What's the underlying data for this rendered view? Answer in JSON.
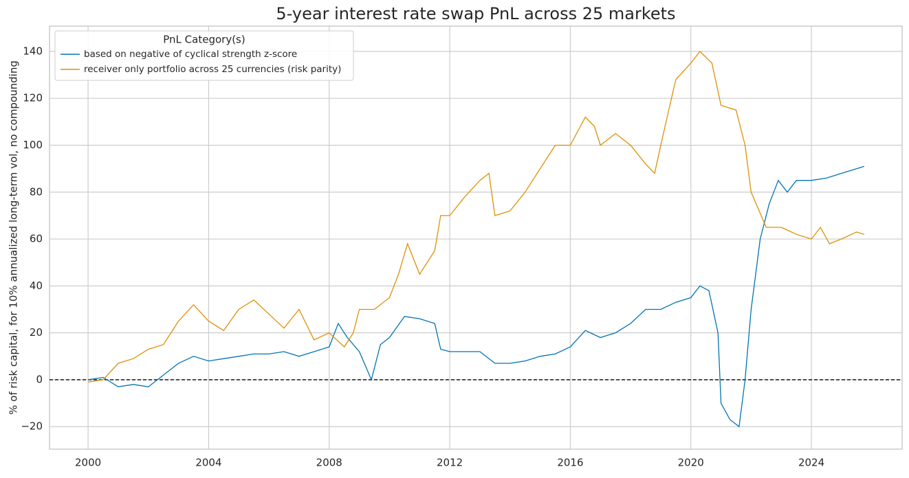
{
  "chart_data": {
    "type": "line",
    "title": "5-year interest rate swap PnL across 25 markets",
    "ylabel": "% of risk capital, for 10% annualized long-term vol, no compounding",
    "legend_title": "PnL Category(s)",
    "legend": "upper left",
    "grid": true,
    "hline": 0,
    "xlim": [
      1998.72,
      2027.01
    ],
    "xticks": [
      2000,
      2004,
      2008,
      2012,
      2016,
      2020,
      2024
    ],
    "ylim": [
      -29.6,
      150.8
    ],
    "yticks": [
      {
        "value": -20,
        "label": "−20"
      },
      0,
      20,
      40,
      60,
      80,
      100,
      120,
      140
    ],
    "series": [
      {
        "name": "based on negative of cyclical strength z-score",
        "color": "#0173b2",
        "x": [
          2000,
          2000.5,
          2001,
          2001.5,
          2002,
          2002.5,
          2003,
          2003.5,
          2004,
          2004.5,
          2005,
          2005.5,
          2006,
          2006.5,
          2007,
          2007.5,
          2008,
          2008.3,
          2008.6,
          2009,
          2009.4,
          2009.7,
          2010,
          2010.5,
          2011,
          2011.5,
          2011.7,
          2012,
          2012.5,
          2013,
          2013.5,
          2014,
          2014.5,
          2015,
          2015.5,
          2016,
          2016.5,
          2017,
          2017.5,
          2018,
          2018.5,
          2019,
          2019.5,
          2020,
          2020.3,
          2020.6,
          2020.9,
          2021,
          2021.3,
          2021.6,
          2021.8,
          2022,
          2022.3,
          2022.6,
          2022.9,
          2023.2,
          2023.5,
          2024,
          2024.5,
          2025,
          2025.5,
          2025.75
        ],
        "values": [
          0,
          1,
          -3,
          -2,
          -3,
          2,
          7,
          10,
          8,
          9,
          10,
          11,
          11,
          12,
          10,
          12,
          14,
          24,
          18,
          12,
          0,
          15,
          18,
          27,
          26,
          24,
          13,
          12,
          12,
          12,
          7,
          7,
          8,
          10,
          11,
          14,
          21,
          18,
          20,
          24,
          30,
          30,
          33,
          35,
          40,
          38,
          20,
          -10,
          -17,
          -20,
          0,
          30,
          60,
          75,
          85,
          80,
          85,
          85,
          86,
          88,
          90,
          91
        ]
      },
      {
        "name": "receiver only portfolio across 25 currencies (risk parity)",
        "color": "#de8f05",
        "x": [
          2000,
          2000.5,
          2001,
          2001.5,
          2002,
          2002.5,
          2003,
          2003.5,
          2004,
          2004.5,
          2005,
          2005.5,
          2006,
          2006.5,
          2007,
          2007.5,
          2008,
          2008.5,
          2008.8,
          2009,
          2009.5,
          2010,
          2010.3,
          2010.6,
          2011,
          2011.5,
          2011.7,
          2012,
          2012.5,
          2013,
          2013.3,
          2013.5,
          2014,
          2014.5,
          2015,
          2015.5,
          2016,
          2016.5,
          2016.8,
          2017,
          2017.5,
          2018,
          2018.5,
          2018.8,
          2019,
          2019.5,
          2020,
          2020.3,
          2020.7,
          2021,
          2021.5,
          2021.8,
          2022,
          2022.5,
          2023,
          2023.5,
          2024,
          2024.3,
          2024.6,
          2025,
          2025.5,
          2025.75
        ],
        "values": [
          -1,
          0,
          7,
          9,
          13,
          15,
          25,
          32,
          25,
          21,
          30,
          34,
          28,
          22,
          30,
          17,
          20,
          14,
          20,
          30,
          30,
          35,
          45,
          58,
          45,
          55,
          70,
          70,
          78,
          85,
          88,
          70,
          72,
          80,
          90,
          100,
          100,
          112,
          108,
          100,
          105,
          100,
          92,
          88,
          100,
          128,
          135,
          140,
          135,
          117,
          115,
          100,
          80,
          65,
          65,
          62,
          60,
          65,
          58,
          60,
          63,
          62
        ]
      }
    ]
  }
}
